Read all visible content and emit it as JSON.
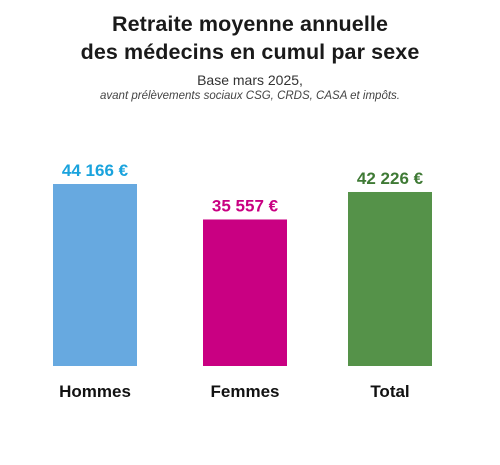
{
  "chart_data": {
    "type": "bar",
    "title_lines": [
      "Retraite moyenne annuelle",
      "des médecins en cumul par sexe"
    ],
    "subtitle": "Base mars 2025,",
    "note": "avant prélèvements sociaux CSG, CRDS, CASA et impôts.",
    "categories": [
      "Hommes",
      "Femmes",
      "Total"
    ],
    "values": [
      44166,
      35557,
      42226
    ],
    "value_labels": [
      "44 166 €",
      "35 557 €",
      "42 226 €"
    ],
    "colors": [
      "#67a9e0",
      "#c90082",
      "#559249"
    ],
    "label_colors": [
      "#1aa3dd",
      "#c90082",
      "#3f7a35"
    ],
    "ylim": [
      0,
      44166
    ],
    "grid": false,
    "legend": "none"
  }
}
